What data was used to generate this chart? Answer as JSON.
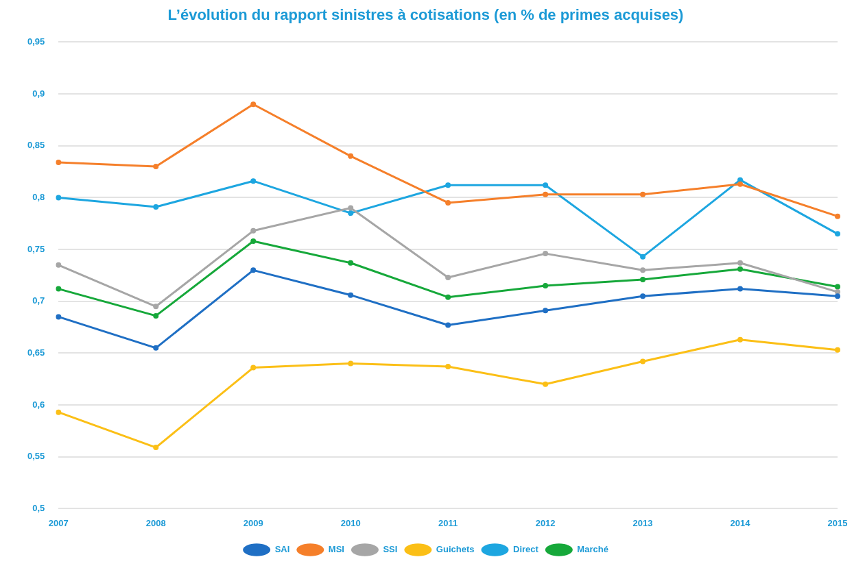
{
  "chart_data": {
    "type": "line",
    "title": "L’évolution du rapport sinistres à cotisations (en % de primes acquises)",
    "categories": [
      "2007",
      "2008",
      "2009",
      "2010",
      "2011",
      "2012",
      "2013",
      "2014",
      "2015"
    ],
    "series": [
      {
        "name": "SAI",
        "color": "#1f6fc4",
        "values": [
          0.685,
          0.655,
          0.73,
          0.706,
          0.677,
          0.691,
          0.705,
          0.712,
          0.705
        ]
      },
      {
        "name": "MSI",
        "color": "#f57f2a",
        "values": [
          0.834,
          0.83,
          0.89,
          0.84,
          0.795,
          0.803,
          0.803,
          0.813,
          0.782
        ]
      },
      {
        "name": "SSI",
        "color": "#a6a6a6",
        "values": [
          0.735,
          0.695,
          0.768,
          0.79,
          0.723,
          0.746,
          0.73,
          0.737,
          0.709
        ]
      },
      {
        "name": "Guichets",
        "color": "#fbbf16",
        "values": [
          0.593,
          0.559,
          0.636,
          0.64,
          0.637,
          0.62,
          0.642,
          0.663,
          0.653
        ]
      },
      {
        "name": "Direct",
        "color": "#1da6e0",
        "values": [
          0.8,
          0.791,
          0.816,
          0.785,
          0.812,
          0.812,
          0.743,
          0.817,
          0.765
        ]
      },
      {
        "name": "Marché",
        "color": "#16a83a",
        "values": [
          0.712,
          0.686,
          0.758,
          0.737,
          0.704,
          0.715,
          0.721,
          0.731,
          0.714
        ]
      }
    ],
    "ylim": [
      0.5,
      0.95
    ],
    "yticks": [
      {
        "value": 0.5,
        "label": "0,5"
      },
      {
        "value": 0.55,
        "label": "0,55"
      },
      {
        "value": 0.6,
        "label": "0,6"
      },
      {
        "value": 0.65,
        "label": "0,65"
      },
      {
        "value": 0.7,
        "label": "0,7"
      },
      {
        "value": 0.75,
        "label": "0,75"
      },
      {
        "value": 0.8,
        "label": "0,8"
      },
      {
        "value": 0.85,
        "label": "0,85"
      },
      {
        "value": 0.9,
        "label": "0,9"
      },
      {
        "value": 0.95,
        "label": "0,95"
      }
    ],
    "grid": "y",
    "legend": "bottom",
    "marker": "circle",
    "line_style": "solid"
  }
}
